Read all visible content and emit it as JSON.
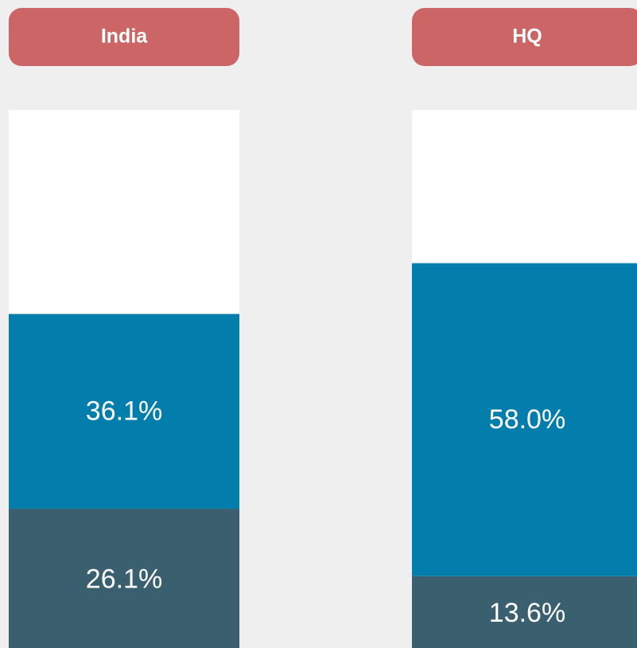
{
  "chart_data": {
    "type": "stacked-bar",
    "categories": [
      "India",
      "HQ"
    ],
    "series": [
      {
        "color": "#3a5f6f",
        "values": [
          26.1,
          13.6
        ],
        "value_labels": [
          "26.1%",
          "13.6%"
        ]
      },
      {
        "color": "#037dab",
        "values": [
          36.1,
          58.0
        ],
        "value_labels": [
          "36.1%",
          "58.0%"
        ]
      },
      {
        "color": "#ffffff",
        "values": [
          37.8,
          28.4
        ]
      }
    ],
    "header_color": "#cc6666",
    "ylim": [
      0,
      100
    ]
  }
}
